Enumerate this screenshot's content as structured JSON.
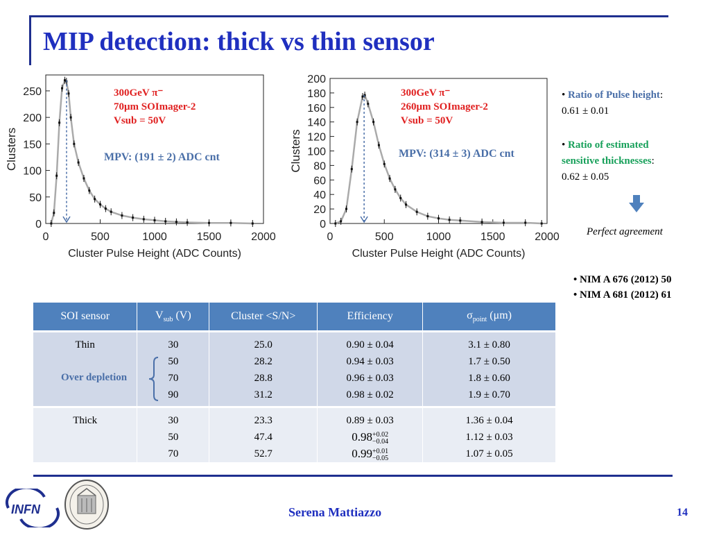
{
  "slide": {
    "title": "MIP detection: thick vs thin sensor",
    "author": "Serena Mattiazzo",
    "page_number": "14",
    "logo_text": "INFN"
  },
  "colors": {
    "title_blue": "#1f2fbf",
    "rule_blue": "#1f2f8f",
    "annotation_red": "#e02020",
    "mpv_blue": "#4a6fa8",
    "table_header": "#4f81bd",
    "ratio_green": "#17a05a"
  },
  "plots": {
    "left": {
      "annotation_line1": "300GeV π⁻",
      "annotation_line2": "70μm SOImager-2",
      "annotation_line3": "Vsub = 50V",
      "mpv": "MPV: (191 ± 2) ADC cnt"
    },
    "right": {
      "annotation_line1": "300GeV π⁻",
      "annotation_line2": "260μm SOImager-2",
      "annotation_line3": "Vsub = 50V",
      "mpv": "MPV: (314 ± 3) ADC cnt"
    }
  },
  "chart_data": [
    {
      "type": "line",
      "xlabel": "Cluster Pulse Height (ADC Counts)",
      "ylabel": "Clusters",
      "xlim": [
        0,
        2000
      ],
      "ylim": [
        0,
        280
      ],
      "x_ticks": [
        0,
        500,
        1000,
        1500,
        2000
      ],
      "y_ticks": [
        0,
        50,
        100,
        150,
        200,
        250
      ],
      "mpv_marker_x": 191,
      "series": [
        {
          "x": [
            50,
            75,
            100,
            125,
            150,
            175,
            190,
            210,
            230,
            260,
            300,
            350,
            400,
            450,
            500,
            550,
            600,
            700,
            800,
            900,
            1000,
            1100,
            1200,
            1300,
            1500,
            1700,
            1900
          ],
          "values": [
            0,
            20,
            90,
            190,
            255,
            270,
            268,
            245,
            200,
            150,
            115,
            85,
            62,
            46,
            36,
            28,
            22,
            15,
            11,
            8,
            6,
            4,
            3,
            2,
            1,
            1,
            0
          ]
        }
      ]
    },
    {
      "type": "line",
      "xlabel": "Cluster Pulse Height (ADC Counts)",
      "ylabel": "Clusters",
      "xlim": [
        0,
        2000
      ],
      "ylim": [
        0,
        200
      ],
      "x_ticks": [
        0,
        500,
        1000,
        1500,
        2000
      ],
      "y_ticks": [
        0,
        20,
        40,
        60,
        80,
        100,
        120,
        140,
        160,
        180,
        200
      ],
      "mpv_marker_x": 314,
      "series": [
        {
          "x": [
            50,
            100,
            150,
            200,
            250,
            300,
            320,
            350,
            400,
            450,
            500,
            550,
            600,
            650,
            700,
            800,
            900,
            1000,
            1100,
            1200,
            1400,
            1600,
            1800,
            1950
          ],
          "values": [
            0,
            3,
            20,
            75,
            140,
            175,
            177,
            165,
            140,
            108,
            82,
            62,
            47,
            35,
            26,
            16,
            10,
            7,
            5,
            4,
            2,
            1,
            1,
            0
          ]
        }
      ]
    }
  ],
  "side": {
    "ratio1_label": "Ratio of Pulse height",
    "ratio1_value": "0.61 ± 0.01",
    "ratio2_label_a": "Ratio of estimated",
    "ratio2_label_b": "sensitive thicknesses",
    "ratio2_value": "0.62 ± 0.05",
    "agreement": "Perfect agreement",
    "ref1": "NIM A 676 (2012) 50",
    "ref2": "NIM A 681 (2012) 61",
    "arrow_icon": "down-arrow-icon"
  },
  "table": {
    "headers": [
      "SOI sensor",
      "Vsub (V)",
      "Cluster <S/N>",
      "Efficiency",
      "σpoint (μm)"
    ],
    "over_depletion": "Over depletion",
    "thin": {
      "label": "Thin",
      "vsub": [
        "30",
        "50",
        "70",
        "90"
      ],
      "sn": [
        "25.0",
        "28.2",
        "28.8",
        "31.2"
      ],
      "eff": [
        "0.90 ± 0.04",
        "0.94 ± 0.03",
        "0.96 ± 0.03",
        "0.98 ± 0.02"
      ],
      "sigma": [
        "3.1 ± 0.80",
        "1.7 ± 0.50",
        "1.8 ± 0.60",
        "1.9 ± 0.70"
      ]
    },
    "thick": {
      "label": "Thick",
      "vsub": [
        "30",
        "50",
        "70"
      ],
      "sn": [
        "23.3",
        "47.4",
        "52.7"
      ],
      "eff0": "0.89 ± 0.03",
      "eff1_val": "0.98",
      "eff1_up": "+0.02",
      "eff1_dn": "−0.04",
      "eff2_val": "0.99",
      "eff2_up": "+0.01",
      "eff2_dn": "−0.05",
      "sigma": [
        "1.36 ± 0.04",
        "1.12 ± 0.03",
        "1.07 ± 0.05"
      ]
    }
  }
}
